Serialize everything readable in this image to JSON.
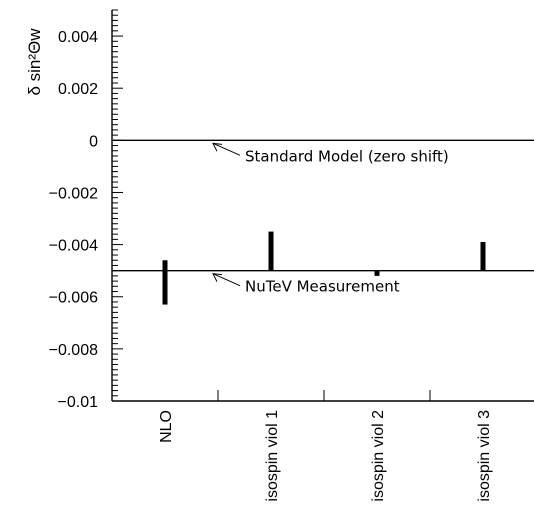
{
  "chart_data": {
    "type": "bar",
    "style": "floating error bars",
    "ylabel": "δ sin²Θw",
    "ylim": [
      -0.01,
      0.005
    ],
    "yticks": [
      0.004,
      0.002,
      0,
      -0.002,
      -0.004,
      -0.006,
      -0.008,
      -0.01
    ],
    "ytick_labels": [
      "0.004",
      "0.002",
      "0",
      "−0.002",
      "−0.004",
      "−0.006",
      "−0.008",
      "−0.01"
    ],
    "categories": [
      "NLO",
      "isospin viol 1",
      "isospin viol 2",
      "isospin viol 3"
    ],
    "series": [
      {
        "low": [
          -0.0063,
          -0.005,
          -0.0052,
          -0.005
        ],
        "high": [
          -0.0046,
          -0.0035,
          -0.005,
          -0.0039
        ]
      }
    ],
    "reference_lines": [
      {
        "value": 0,
        "label": "Standard Model (zero shift)"
      },
      {
        "value": -0.005,
        "label": "NuTeV Measurement"
      }
    ],
    "grid": false
  }
}
